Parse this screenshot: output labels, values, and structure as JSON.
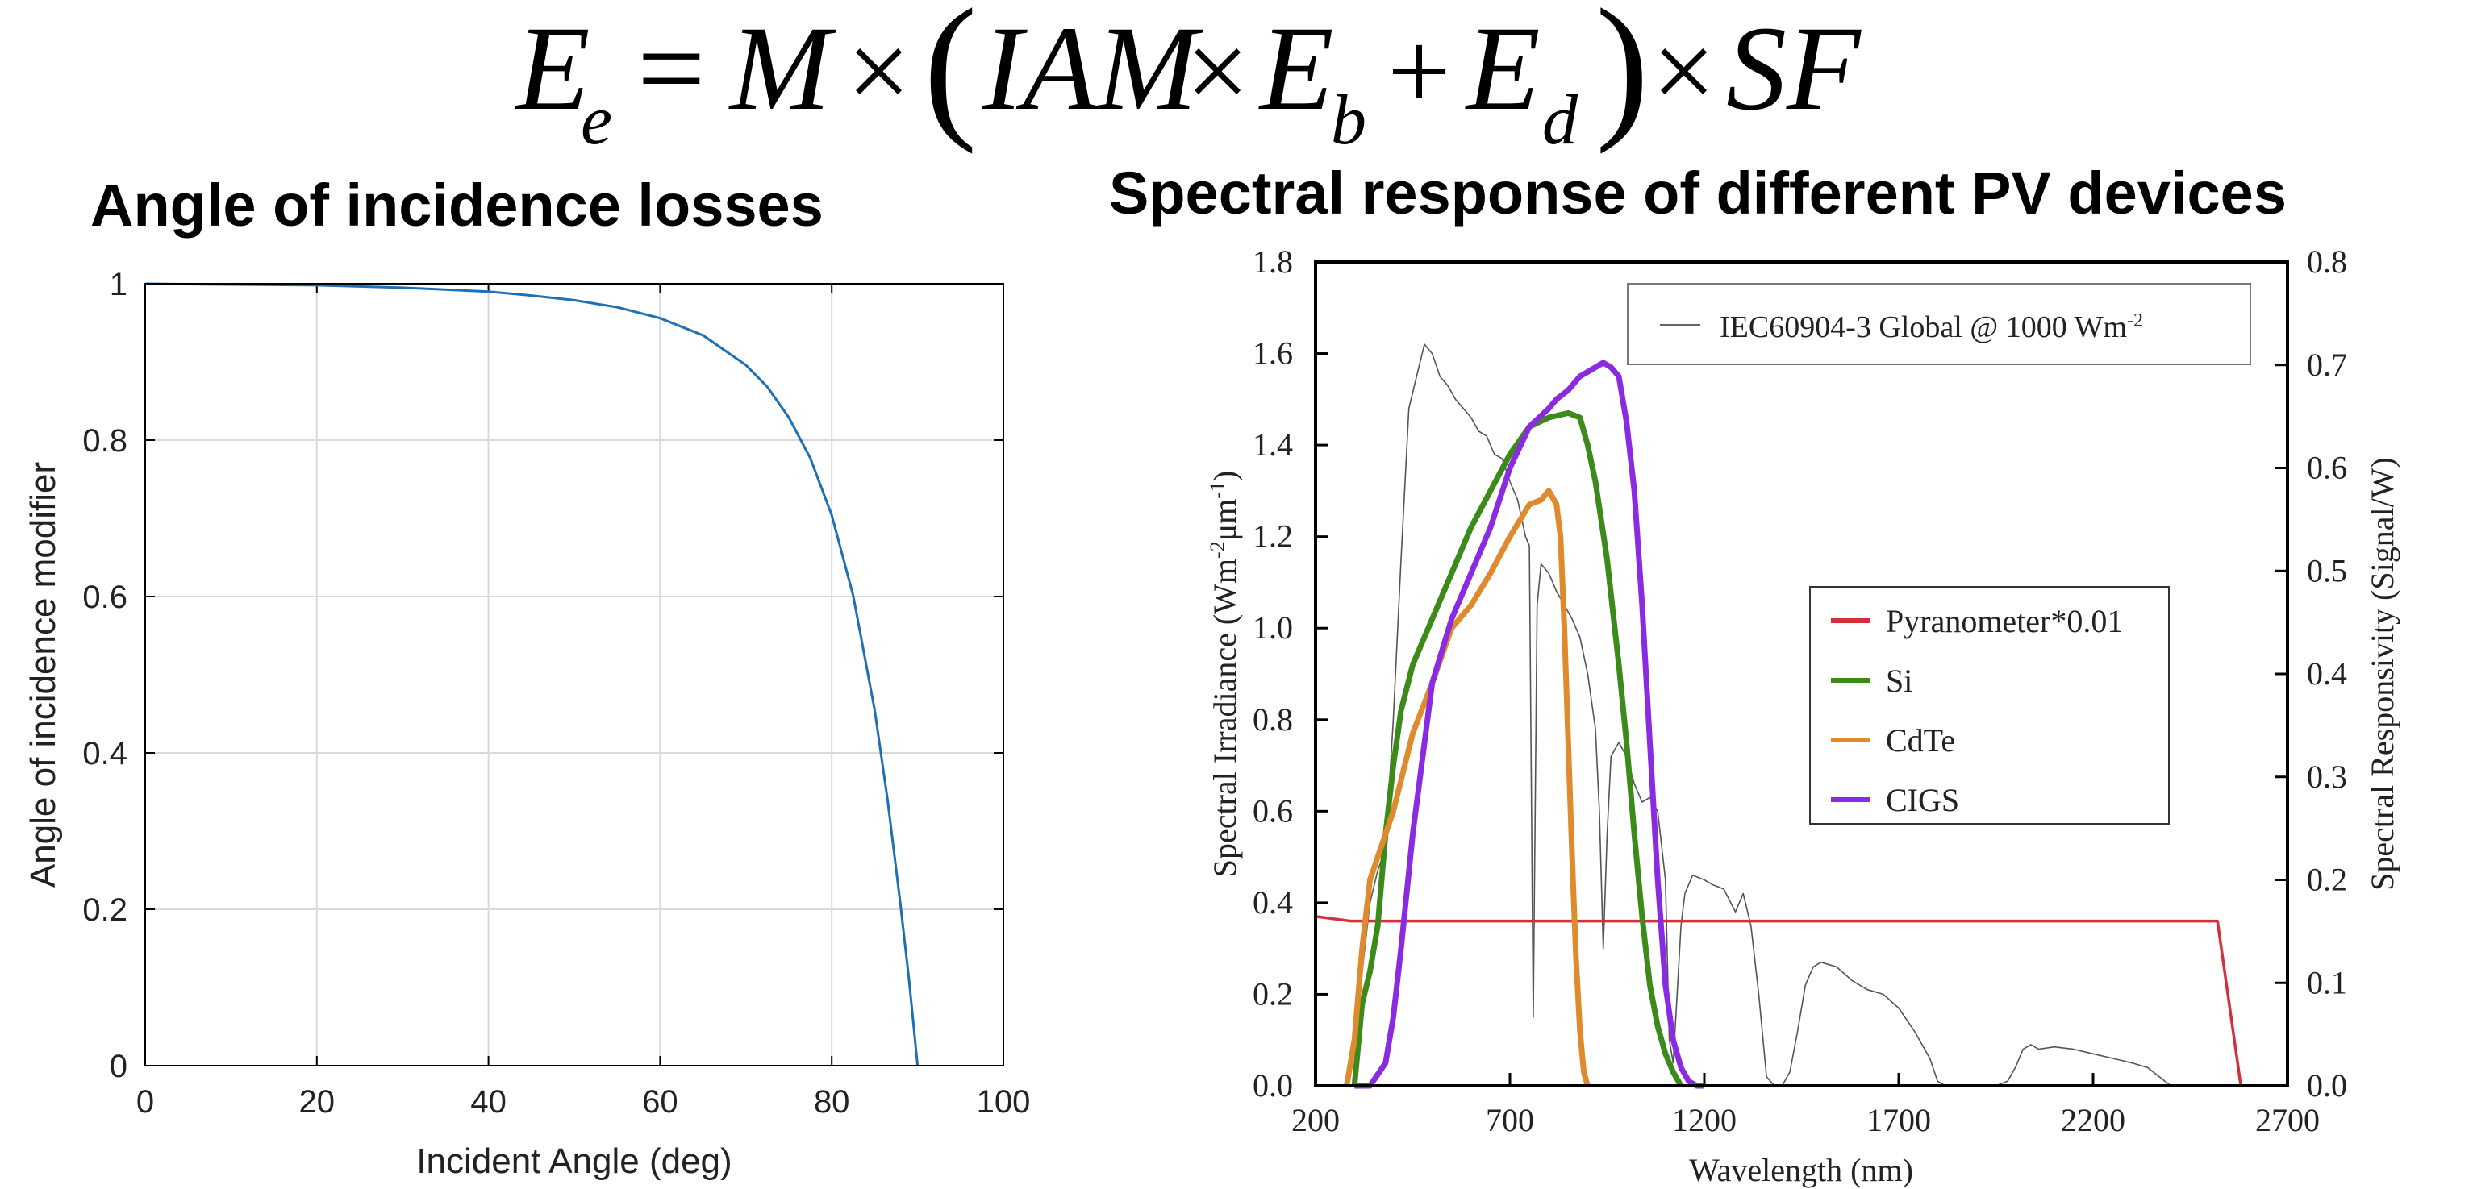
{
  "equation": {
    "Ee": "E",
    "Ee_sub": "e",
    "eq": "=",
    "M": "M",
    "times1": "×",
    "lparen": "(",
    "IAM": "IAM",
    "times2": "×",
    "Eb": "E",
    "Eb_sub": "b",
    "plus": "+",
    "Ed": "E",
    "Ed_sub": "d",
    "rparen": ")",
    "times3": "×",
    "SF": "SF"
  },
  "left_heading": "Angle of incidence losses",
  "right_heading": "Spectral response of different PV devices",
  "chart_data": [
    {
      "type": "line",
      "title": "",
      "xlabel": "Incident Angle (deg)",
      "ylabel": "Angle of incidence modifier",
      "xlim": [
        0,
        100
      ],
      "ylim": [
        0,
        1
      ],
      "x_ticks": [
        "0",
        "20",
        "40",
        "60",
        "80",
        "100"
      ],
      "y_ticks": [
        "0",
        "0.2",
        "0.4",
        "0.6",
        "0.8",
        "1"
      ],
      "grid": true,
      "line_color": "#1f6fb4",
      "series": [
        {
          "x": [
            0,
            10,
            20,
            30,
            40,
            45,
            50,
            55,
            60,
            65,
            70,
            72.5,
            75,
            77.5,
            80,
            82.5,
            85,
            86.5,
            88,
            89,
            90
          ],
          "values": [
            1.0,
            0.999,
            0.998,
            0.995,
            0.99,
            0.985,
            0.979,
            0.97,
            0.956,
            0.934,
            0.896,
            0.868,
            0.829,
            0.777,
            0.704,
            0.601,
            0.455,
            0.34,
            0.207,
            0.11,
            0.0
          ]
        }
      ]
    },
    {
      "type": "line",
      "title": "",
      "xlabel": "Wavelength (nm)",
      "ylabel": "Spectral Irradiance (Wm-2μm-1)",
      "ylabel_right": "Spectral Responsivity (Signal/W)",
      "xlim": [
        200,
        2700
      ],
      "ylim": [
        0,
        1.8
      ],
      "ylim_right": [
        0,
        0.8
      ],
      "x_ticks": [
        "200",
        "700",
        "1200",
        "1700",
        "2200",
        "2700"
      ],
      "y_ticks": [
        "0.0",
        "0.2",
        "0.4",
        "0.6",
        "0.8",
        "1.0",
        "1.2",
        "1.4",
        "1.6",
        "1.8"
      ],
      "y_ticks_right": [
        "0.0",
        "0.1",
        "0.2",
        "0.3",
        "0.4",
        "0.5",
        "0.6",
        "0.7",
        "0.8"
      ],
      "legend_top": {
        "label": "IEC60904-3 Global @ 1000 Wm-2",
        "color": "#666666"
      },
      "legend_items": [
        {
          "label": "Pyranometer*0.01",
          "color": "#d62f3c"
        },
        {
          "label": "Si",
          "color": "#3c8a1a"
        },
        {
          "label": "CdTe",
          "color": "#e08a2e"
        },
        {
          "label": "CIGS",
          "color": "#8a2be2"
        }
      ],
      "series": [
        {
          "name": "IEC60904-3 Global @ 1000 Wm-2",
          "axis": "left",
          "color": "#555555",
          "x": [
            280,
            300,
            320,
            340,
            360,
            380,
            400,
            420,
            440,
            460,
            480,
            500,
            520,
            540,
            560,
            580,
            600,
            620,
            640,
            660,
            680,
            700,
            720,
            740,
            750,
            760,
            770,
            780,
            800,
            820,
            840,
            860,
            880,
            900,
            920,
            930,
            940,
            950,
            960,
            980,
            1000,
            1020,
            1040,
            1060,
            1080,
            1100,
            1110,
            1120,
            1130,
            1140,
            1150,
            1170,
            1200,
            1220,
            1250,
            1280,
            1300,
            1320,
            1340,
            1360,
            1380,
            1400,
            1420,
            1440,
            1460,
            1480,
            1500,
            1540,
            1580,
            1620,
            1660,
            1700,
            1740,
            1780,
            1800,
            1820,
            1850,
            1900,
            1950,
            1980,
            2000,
            2020,
            2040,
            2060,
            2100,
            2150,
            2200,
            2250,
            2300,
            2340,
            2370,
            2400
          ],
          "values": [
            0.0,
            0.1,
            0.25,
            0.4,
            0.47,
            0.52,
            0.8,
            1.15,
            1.48,
            1.55,
            1.62,
            1.6,
            1.55,
            1.53,
            1.5,
            1.48,
            1.46,
            1.43,
            1.42,
            1.38,
            1.37,
            1.32,
            1.28,
            1.2,
            1.18,
            0.15,
            1.05,
            1.14,
            1.12,
            1.08,
            1.05,
            1.02,
            0.98,
            0.9,
            0.78,
            0.6,
            0.3,
            0.55,
            0.72,
            0.75,
            0.72,
            0.66,
            0.62,
            0.63,
            0.6,
            0.45,
            0.1,
            0.05,
            0.2,
            0.35,
            0.42,
            0.46,
            0.45,
            0.44,
            0.43,
            0.38,
            0.42,
            0.35,
            0.2,
            0.02,
            0.0,
            0.0,
            0.03,
            0.12,
            0.22,
            0.26,
            0.27,
            0.26,
            0.23,
            0.21,
            0.2,
            0.17,
            0.12,
            0.06,
            0.01,
            0.0,
            0.0,
            0.0,
            0.0,
            0.01,
            0.04,
            0.08,
            0.09,
            0.08,
            0.085,
            0.08,
            0.07,
            0.06,
            0.05,
            0.04,
            0.02,
            0.0
          ]
        },
        {
          "name": "Pyranometer*0.01",
          "axis": "left",
          "color": "#d62f3c",
          "x": [
            200,
            290,
            2520,
            2580
          ],
          "values": [
            0.37,
            0.36,
            0.36,
            0.0
          ]
        },
        {
          "name": "Si",
          "axis": "left",
          "color": "#3c8a1a",
          "x": [
            300,
            320,
            340,
            360,
            380,
            400,
            420,
            450,
            500,
            550,
            600,
            650,
            700,
            750,
            800,
            850,
            880,
            900,
            920,
            950,
            980,
            1000,
            1020,
            1040,
            1060,
            1080,
            1100,
            1120,
            1140
          ],
          "values": [
            0.0,
            0.18,
            0.25,
            0.35,
            0.55,
            0.7,
            0.82,
            0.92,
            1.02,
            1.12,
            1.22,
            1.3,
            1.38,
            1.44,
            1.46,
            1.47,
            1.46,
            1.4,
            1.32,
            1.15,
            0.92,
            0.75,
            0.55,
            0.37,
            0.22,
            0.13,
            0.07,
            0.03,
            0.0
          ]
        },
        {
          "name": "CdTe",
          "axis": "left",
          "color": "#e08a2e",
          "x": [
            280,
            300,
            320,
            340,
            360,
            400,
            450,
            500,
            550,
            600,
            650,
            700,
            750,
            780,
            800,
            820,
            830,
            840,
            850,
            860,
            870,
            880,
            890,
            900
          ],
          "values": [
            0.0,
            0.1,
            0.3,
            0.45,
            0.5,
            0.6,
            0.77,
            0.88,
            1.0,
            1.05,
            1.12,
            1.2,
            1.27,
            1.28,
            1.3,
            1.27,
            1.2,
            1.0,
            0.75,
            0.5,
            0.28,
            0.12,
            0.03,
            0.0
          ]
        },
        {
          "name": "CIGS",
          "axis": "left",
          "color": "#8a2be2",
          "x": [
            300,
            340,
            380,
            400,
            420,
            450,
            500,
            550,
            600,
            650,
            700,
            750,
            800,
            820,
            850,
            880,
            900,
            920,
            940,
            960,
            980,
            1000,
            1020,
            1040,
            1060,
            1080,
            1100,
            1120,
            1140,
            1160,
            1180,
            1200
          ],
          "values": [
            0.0,
            0.0,
            0.05,
            0.15,
            0.3,
            0.55,
            0.88,
            1.02,
            1.12,
            1.22,
            1.35,
            1.44,
            1.48,
            1.5,
            1.52,
            1.55,
            1.56,
            1.57,
            1.58,
            1.57,
            1.55,
            1.45,
            1.3,
            1.05,
            0.75,
            0.45,
            0.22,
            0.1,
            0.04,
            0.01,
            0.0,
            0.0
          ]
        },
        {
          "name": "",
          "axis": "right",
          "color": "#000000",
          "x": [],
          "values": []
        }
      ]
    }
  ]
}
